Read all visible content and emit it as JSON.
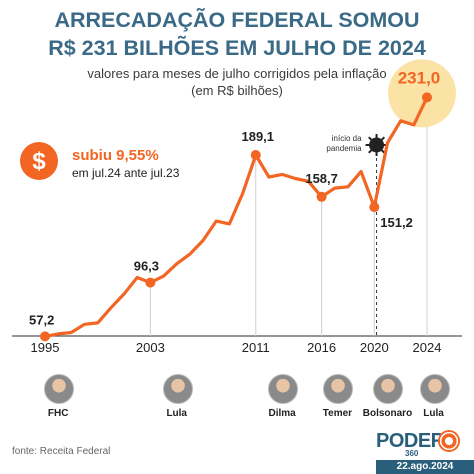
{
  "title_line1": "ARRECADAÇÃO FEDERAL SOMOU",
  "title_line2": "R$ 231 BILHÕES EM JULHO DE 2024",
  "subtitle_line1": "valores para meses de julho corrigidos pela inflação",
  "subtitle_line2": "(em R$ bilhões)",
  "callout": {
    "symbol": "$",
    "headline": "subiu 9,55%",
    "detail": "em jul.24 ante jul.23",
    "colors": {
      "accent": "#f26522",
      "dark": "#222222"
    }
  },
  "pandemic_marker": {
    "label_line1": "início da",
    "label_line2": "pandemia",
    "year": 2020.17,
    "icon": "virus-icon"
  },
  "presidents": [
    {
      "name": "FHC",
      "year": 1996
    },
    {
      "name": "Lula",
      "year": 2005
    },
    {
      "name": "Dilma",
      "year": 2013
    },
    {
      "name": "Temer",
      "year": 2017.2
    },
    {
      "name": "Bolsonaro",
      "year": 2021
    },
    {
      "name": "Lula",
      "year": 2024.5
    }
  ],
  "source": "fonte: Receita Federal",
  "brand": {
    "name": "PODER",
    "sub": "360",
    "date": "22.ago.2024",
    "color": "#2a5f7c"
  },
  "chart_data": {
    "type": "line",
    "xlim": [
      1995,
      2024
    ],
    "ylim": [
      40,
      240
    ],
    "x_ticks": [
      1995,
      2003,
      2011,
      2016,
      2020,
      2024
    ],
    "x_tick_labels": [
      "1995",
      "2003",
      "2011",
      "2016",
      "2020",
      "2024"
    ],
    "series": [
      {
        "color": "#f26522",
        "x": [
          1995,
          1996,
          1997,
          1998,
          1999,
          2000,
          2001,
          2002,
          2003,
          2004,
          2005,
          2006,
          2007,
          2008,
          2009,
          2010,
          2011,
          2012,
          2013,
          2014,
          2015,
          2016,
          2017,
          2018,
          2019,
          2020,
          2021,
          2022,
          2023,
          2024
        ],
        "y": [
          57.2,
          59,
          60,
          66,
          67,
          78,
          88,
          100,
          96.3,
          101,
          110,
          117,
          127,
          141,
          139,
          161,
          189.1,
          173,
          175,
          172,
          170,
          158.7,
          165,
          166,
          177,
          151.2,
          198,
          214,
          211,
          231.0
        ]
      }
    ],
    "data_labels": [
      {
        "x": 1995,
        "y": 57.2,
        "text": "57,2",
        "highlight": false
      },
      {
        "x": 2003,
        "y": 96.3,
        "text": "96,3",
        "highlight": false
      },
      {
        "x": 2011,
        "y": 189.1,
        "text": "189,1",
        "highlight": false
      },
      {
        "x": 2016,
        "y": 158.7,
        "text": "158,7",
        "highlight": false
      },
      {
        "x": 2020,
        "y": 151.2,
        "text": "151,2",
        "highlight": false
      },
      {
        "x": 2024,
        "y": 231.0,
        "text": "231,0",
        "highlight": true
      }
    ],
    "marked_points": [
      1995,
      2003,
      2011,
      2016,
      2020,
      2024
    ],
    "highlight_color": "#fbe3a6",
    "grid": false
  }
}
